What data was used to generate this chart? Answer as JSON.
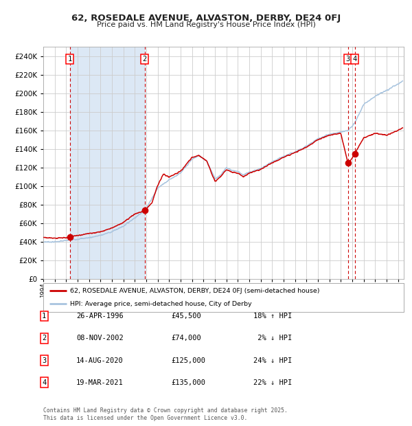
{
  "title": "62, ROSEDALE AVENUE, ALVASTON, DERBY, DE24 0FJ",
  "subtitle": "Price paid vs. HM Land Registry's House Price Index (HPI)",
  "legend_line1": "62, ROSEDALE AVENUE, ALVASTON, DERBY, DE24 0FJ (semi-detached house)",
  "legend_line2": "HPI: Average price, semi-detached house, City of Derby",
  "footer": "Contains HM Land Registry data © Crown copyright and database right 2025.\nThis data is licensed under the Open Government Licence v3.0.",
  "sales": [
    {
      "num": 1,
      "date": "26-APR-1996",
      "price": 45500,
      "pct": "18%",
      "dir": "↑",
      "x_year": 1996.32
    },
    {
      "num": 2,
      "date": "08-NOV-2002",
      "price": 74000,
      "pct": "2%",
      "dir": "↓",
      "x_year": 2002.86
    },
    {
      "num": 3,
      "date": "14-AUG-2020",
      "price": 125000,
      "pct": "24%",
      "dir": "↓",
      "x_year": 2020.62
    },
    {
      "num": 4,
      "date": "19-MAR-2021",
      "price": 135000,
      "pct": "22%",
      "dir": "↓",
      "x_year": 2021.21
    }
  ],
  "shade_regions": [
    [
      1996.32,
      2002.86
    ]
  ],
  "ylim": [
    0,
    250000
  ],
  "xlim": [
    1994.0,
    2025.5
  ],
  "hpi_color": "#a8c4df",
  "price_color": "#cc0000",
  "shade_color": "#dce8f5",
  "grid_color": "#cccccc",
  "dashed_line_color": "#cc0000",
  "title_color": "#222222",
  "background_color": "#ffffff",
  "plot_bg_color": "#ffffff",
  "hpi_anchors": [
    [
      1994.0,
      40000
    ],
    [
      1995.0,
      40000
    ],
    [
      1996.0,
      41500
    ],
    [
      1997.0,
      43000
    ],
    [
      1998.0,
      44500
    ],
    [
      1999.0,
      47000
    ],
    [
      2000.0,
      51000
    ],
    [
      2001.0,
      57000
    ],
    [
      2002.0,
      66000
    ],
    [
      2002.86,
      73500
    ],
    [
      2003.0,
      76000
    ],
    [
      2004.0,
      98000
    ],
    [
      2005.0,
      107000
    ],
    [
      2006.0,
      114000
    ],
    [
      2007.0,
      129000
    ],
    [
      2007.6,
      133000
    ],
    [
      2008.3,
      127000
    ],
    [
      2009.0,
      108000
    ],
    [
      2009.5,
      112000
    ],
    [
      2010.0,
      120000
    ],
    [
      2010.5,
      117000
    ],
    [
      2011.0,
      116000
    ],
    [
      2011.5,
      112000
    ],
    [
      2012.0,
      115000
    ],
    [
      2013.0,
      119000
    ],
    [
      2014.0,
      126000
    ],
    [
      2015.0,
      132000
    ],
    [
      2016.0,
      137000
    ],
    [
      2017.0,
      143000
    ],
    [
      2018.0,
      151000
    ],
    [
      2019.0,
      156000
    ],
    [
      2020.0,
      158000
    ],
    [
      2020.62,
      160000
    ],
    [
      2021.0,
      165000
    ],
    [
      2021.21,
      168000
    ],
    [
      2022.0,
      188000
    ],
    [
      2023.0,
      197000
    ],
    [
      2024.0,
      203000
    ],
    [
      2025.0,
      210000
    ],
    [
      2025.4,
      213000
    ]
  ],
  "red_anchors": [
    [
      1994.0,
      45000
    ],
    [
      1995.0,
      44000
    ],
    [
      1996.0,
      44500
    ],
    [
      1996.32,
      45500
    ],
    [
      1997.0,
      47000
    ],
    [
      1998.0,
      49000
    ],
    [
      1999.0,
      51000
    ],
    [
      2000.0,
      55000
    ],
    [
      2001.0,
      61000
    ],
    [
      2002.0,
      70000
    ],
    [
      2002.86,
      74000
    ],
    [
      2003.5,
      82000
    ],
    [
      2004.0,
      101000
    ],
    [
      2004.5,
      113000
    ],
    [
      2005.0,
      110000
    ],
    [
      2006.0,
      116000
    ],
    [
      2007.0,
      131000
    ],
    [
      2007.6,
      133000
    ],
    [
      2008.3,
      127000
    ],
    [
      2009.0,
      105000
    ],
    [
      2009.5,
      110000
    ],
    [
      2010.0,
      118000
    ],
    [
      2010.5,
      115000
    ],
    [
      2011.0,
      114000
    ],
    [
      2011.5,
      110000
    ],
    [
      2012.0,
      114000
    ],
    [
      2013.0,
      118000
    ],
    [
      2014.0,
      125000
    ],
    [
      2015.0,
      131000
    ],
    [
      2016.0,
      136000
    ],
    [
      2017.0,
      142000
    ],
    [
      2018.0,
      150000
    ],
    [
      2019.0,
      155000
    ],
    [
      2020.0,
      157000
    ],
    [
      2020.62,
      125000
    ],
    [
      2021.0,
      130000
    ],
    [
      2021.21,
      135000
    ],
    [
      2022.0,
      152000
    ],
    [
      2023.0,
      157000
    ],
    [
      2024.0,
      155000
    ],
    [
      2025.0,
      160000
    ],
    [
      2025.4,
      163000
    ]
  ]
}
